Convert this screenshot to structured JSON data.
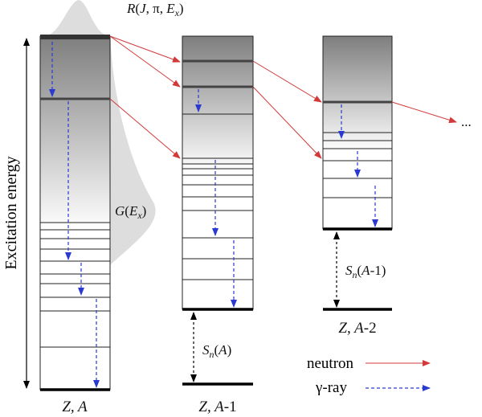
{
  "labels": {
    "R": [
      "R",
      "(",
      "J",
      ", π, ",
      "E",
      "x",
      ")"
    ],
    "G": [
      "G",
      "(",
      "E",
      "x",
      ")"
    ],
    "axis": "Excitation energy",
    "nucleus_A": [
      "Z, A"
    ],
    "nucleus_A1": [
      "Z, A",
      "-1"
    ],
    "nucleus_A2": [
      "Z, A",
      "-2"
    ],
    "Sn_A": [
      "S",
      "n",
      "(",
      "A",
      ")"
    ],
    "Sn_A1": [
      "S",
      "n",
      "(",
      "A",
      "-1)"
    ],
    "more": "...",
    "legend_neutron": "neutron",
    "legend_gamma": "γ-ray"
  }
}
